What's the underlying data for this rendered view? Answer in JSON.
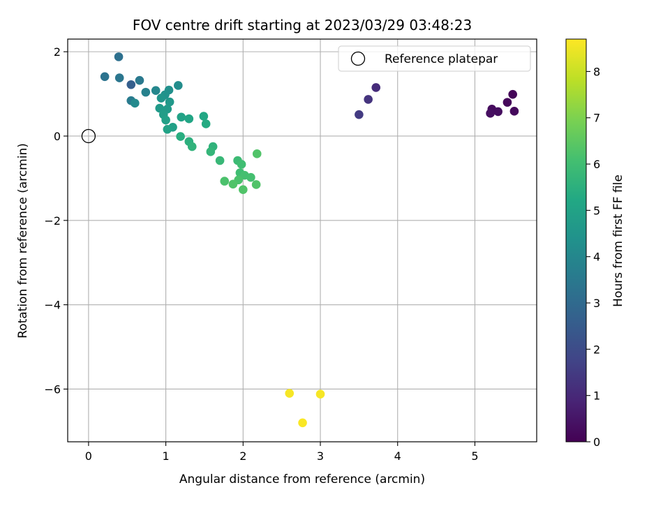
{
  "chart_data": {
    "type": "scatter",
    "title": "FOV centre drift starting at 2023/03/29 03:48:23",
    "xlabel": "Angular distance from reference (arcmin)",
    "ylabel": "Rotation from reference (arcmin)",
    "xlim": [
      -0.27,
      5.8
    ],
    "ylim": [
      -7.25,
      2.3
    ],
    "xticks": [
      0,
      1,
      2,
      3,
      4,
      5
    ],
    "yticks": [
      -6,
      -4,
      -2,
      0,
      2
    ],
    "grid": true,
    "legend": {
      "position": "top-right",
      "entries": [
        "Reference platepar"
      ]
    },
    "reference_point": {
      "x": 0,
      "y": 0,
      "label": "Reference platepar"
    },
    "colorbar": {
      "label": "Hours from first FF file",
      "colormap": "viridis",
      "range": [
        0,
        8.7
      ],
      "ticks": [
        0,
        1,
        2,
        3,
        4,
        5,
        6,
        7,
        8
      ]
    },
    "points": [
      {
        "x": 5.49,
        "y": 0.99,
        "c": 0.1
      },
      {
        "x": 5.42,
        "y": 0.8,
        "c": 0.15
      },
      {
        "x": 5.51,
        "y": 0.59,
        "c": 0.2
      },
      {
        "x": 5.22,
        "y": 0.64,
        "c": 0.25
      },
      {
        "x": 5.3,
        "y": 0.58,
        "c": 0.3
      },
      {
        "x": 5.2,
        "y": 0.54,
        "c": 0.35
      },
      {
        "x": 3.72,
        "y": 1.15,
        "c": 1.1
      },
      {
        "x": 3.62,
        "y": 0.87,
        "c": 1.3
      },
      {
        "x": 3.5,
        "y": 0.51,
        "c": 1.5
      },
      {
        "x": 0.55,
        "y": 1.22,
        "c": 2.6
      },
      {
        "x": 0.39,
        "y": 1.88,
        "c": 3.2
      },
      {
        "x": 0.21,
        "y": 1.41,
        "c": 3.3
      },
      {
        "x": 0.4,
        "y": 1.38,
        "c": 3.4
      },
      {
        "x": 0.66,
        "y": 1.32,
        "c": 3.5
      },
      {
        "x": 0.55,
        "y": 0.84,
        "c": 3.6
      },
      {
        "x": 0.74,
        "y": 1.04,
        "c": 3.8
      },
      {
        "x": 0.87,
        "y": 1.08,
        "c": 4.0
      },
      {
        "x": 0.6,
        "y": 0.78,
        "c": 4.1
      },
      {
        "x": 1.16,
        "y": 1.2,
        "c": 4.2
      },
      {
        "x": 1.04,
        "y": 1.09,
        "c": 4.3
      },
      {
        "x": 0.99,
        "y": 0.98,
        "c": 4.4
      },
      {
        "x": 0.94,
        "y": 0.9,
        "c": 4.5
      },
      {
        "x": 1.05,
        "y": 0.81,
        "c": 4.6
      },
      {
        "x": 1.02,
        "y": 0.64,
        "c": 4.7
      },
      {
        "x": 0.92,
        "y": 0.66,
        "c": 4.7
      },
      {
        "x": 0.97,
        "y": 0.51,
        "c": 4.8
      },
      {
        "x": 1.0,
        "y": 0.38,
        "c": 4.9
      },
      {
        "x": 1.09,
        "y": 0.21,
        "c": 4.9
      },
      {
        "x": 1.02,
        "y": 0.16,
        "c": 5.0
      },
      {
        "x": 1.2,
        "y": 0.45,
        "c": 5.0
      },
      {
        "x": 1.3,
        "y": 0.41,
        "c": 5.1
      },
      {
        "x": 1.49,
        "y": 0.47,
        "c": 5.2
      },
      {
        "x": 1.52,
        "y": 0.29,
        "c": 5.3
      },
      {
        "x": 1.19,
        "y": -0.01,
        "c": 5.4
      },
      {
        "x": 1.3,
        "y": -0.13,
        "c": 5.5
      },
      {
        "x": 1.34,
        "y": -0.25,
        "c": 5.6
      },
      {
        "x": 1.61,
        "y": -0.25,
        "c": 5.6
      },
      {
        "x": 1.58,
        "y": -0.37,
        "c": 5.7
      },
      {
        "x": 1.7,
        "y": -0.58,
        "c": 5.8
      },
      {
        "x": 1.93,
        "y": -0.58,
        "c": 5.9
      },
      {
        "x": 1.98,
        "y": -0.67,
        "c": 6.0
      },
      {
        "x": 1.96,
        "y": -0.87,
        "c": 6.0
      },
      {
        "x": 2.02,
        "y": -0.93,
        "c": 6.1
      },
      {
        "x": 2.1,
        "y": -0.98,
        "c": 6.1
      },
      {
        "x": 1.94,
        "y": -1.04,
        "c": 6.2
      },
      {
        "x": 1.76,
        "y": -1.07,
        "c": 6.2
      },
      {
        "x": 1.87,
        "y": -1.14,
        "c": 6.3
      },
      {
        "x": 2.17,
        "y": -1.15,
        "c": 6.3
      },
      {
        "x": 2.0,
        "y": -1.27,
        "c": 6.3
      },
      {
        "x": 2.18,
        "y": -0.42,
        "c": 6.3
      },
      {
        "x": 2.6,
        "y": -6.1,
        "c": 8.6
      },
      {
        "x": 3.0,
        "y": -6.12,
        "c": 8.6
      },
      {
        "x": 2.77,
        "y": -6.8,
        "c": 8.65
      }
    ]
  }
}
